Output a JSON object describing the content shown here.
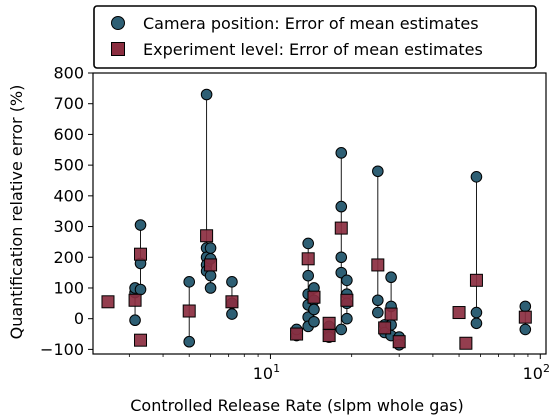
{
  "chart_data": {
    "type": "scatter",
    "title": "",
    "xlabel": "Controlled Release Rate (slpm whole gas)",
    "ylabel": "Quantification relative error (%)",
    "xscale": "log",
    "xlim": [
      2.2,
      105
    ],
    "ylim": [
      -115,
      800
    ],
    "grid": false,
    "legend_position": "top",
    "x_tick_labels": [
      {
        "value": 10,
        "base": "10",
        "exp": "1"
      },
      {
        "value": 100,
        "base": "10",
        "exp": "2"
      }
    ],
    "y_ticks": [
      -100,
      0,
      100,
      200,
      300,
      400,
      500,
      600,
      700,
      800
    ],
    "y_tick_labels": [
      "−100",
      "0",
      "100",
      "200",
      "300",
      "400",
      "500",
      "600",
      "700",
      "800"
    ],
    "series": [
      {
        "name": "Camera position: Error of mean estimates",
        "marker": "circle",
        "color": "#2e5f74",
        "points": [
          [
            3.15,
            -5
          ],
          [
            3.15,
            85
          ],
          [
            3.15,
            100
          ],
          [
            3.3,
            95
          ],
          [
            3.3,
            180
          ],
          [
            3.3,
            305
          ],
          [
            5.0,
            120
          ],
          [
            5.0,
            -75
          ],
          [
            5.8,
            730
          ],
          [
            5.8,
            230
          ],
          [
            5.8,
            200
          ],
          [
            5.8,
            175
          ],
          [
            5.8,
            155
          ],
          [
            6.0,
            230
          ],
          [
            6.0,
            195
          ],
          [
            6.0,
            140
          ],
          [
            6.0,
            100
          ],
          [
            7.2,
            120
          ],
          [
            7.2,
            50
          ],
          [
            7.2,
            15
          ],
          [
            12.5,
            -55
          ],
          [
            12.5,
            -35
          ],
          [
            13.8,
            245
          ],
          [
            13.8,
            140
          ],
          [
            13.8,
            80
          ],
          [
            13.8,
            45
          ],
          [
            13.8,
            5
          ],
          [
            13.8,
            -25
          ],
          [
            14.5,
            100
          ],
          [
            14.5,
            60
          ],
          [
            14.5,
            30
          ],
          [
            14.5,
            -10
          ],
          [
            16.5,
            -25
          ],
          [
            16.5,
            -50
          ],
          [
            16.5,
            -60
          ],
          [
            18.3,
            540
          ],
          [
            18.3,
            365
          ],
          [
            18.3,
            200
          ],
          [
            18.3,
            150
          ],
          [
            18.3,
            -35
          ],
          [
            19.2,
            125
          ],
          [
            19.2,
            80
          ],
          [
            19.2,
            50
          ],
          [
            19.2,
            0
          ],
          [
            25.0,
            480
          ],
          [
            25.0,
            60
          ],
          [
            25.0,
            20
          ],
          [
            26.5,
            -20
          ],
          [
            26.5,
            -45
          ],
          [
            28.0,
            135
          ],
          [
            28.0,
            40
          ],
          [
            28.0,
            -20
          ],
          [
            28.0,
            -55
          ],
          [
            30.0,
            -60
          ],
          [
            30.0,
            -85
          ],
          [
            58.0,
            462
          ],
          [
            58.0,
            20
          ],
          [
            58.0,
            -15
          ],
          [
            88.0,
            40
          ],
          [
            88.0,
            -35
          ]
        ]
      },
      {
        "name": "Experiment level: Error of mean estimates",
        "marker": "square",
        "color": "#8b2e40",
        "points": [
          [
            2.5,
            55
          ],
          [
            3.15,
            60
          ],
          [
            3.3,
            210
          ],
          [
            3.3,
            -70
          ],
          [
            5.0,
            25
          ],
          [
            5.8,
            270
          ],
          [
            6.0,
            175
          ],
          [
            7.2,
            55
          ],
          [
            12.5,
            -50
          ],
          [
            13.8,
            195
          ],
          [
            14.5,
            70
          ],
          [
            16.5,
            -55
          ],
          [
            16.5,
            -15
          ],
          [
            18.3,
            295
          ],
          [
            19.2,
            60
          ],
          [
            25.0,
            175
          ],
          [
            26.5,
            -30
          ],
          [
            28.0,
            15
          ],
          [
            30.0,
            -75
          ],
          [
            50.0,
            20
          ],
          [
            53.0,
            -80
          ],
          [
            58.0,
            125
          ],
          [
            88.0,
            5
          ]
        ]
      }
    ]
  }
}
